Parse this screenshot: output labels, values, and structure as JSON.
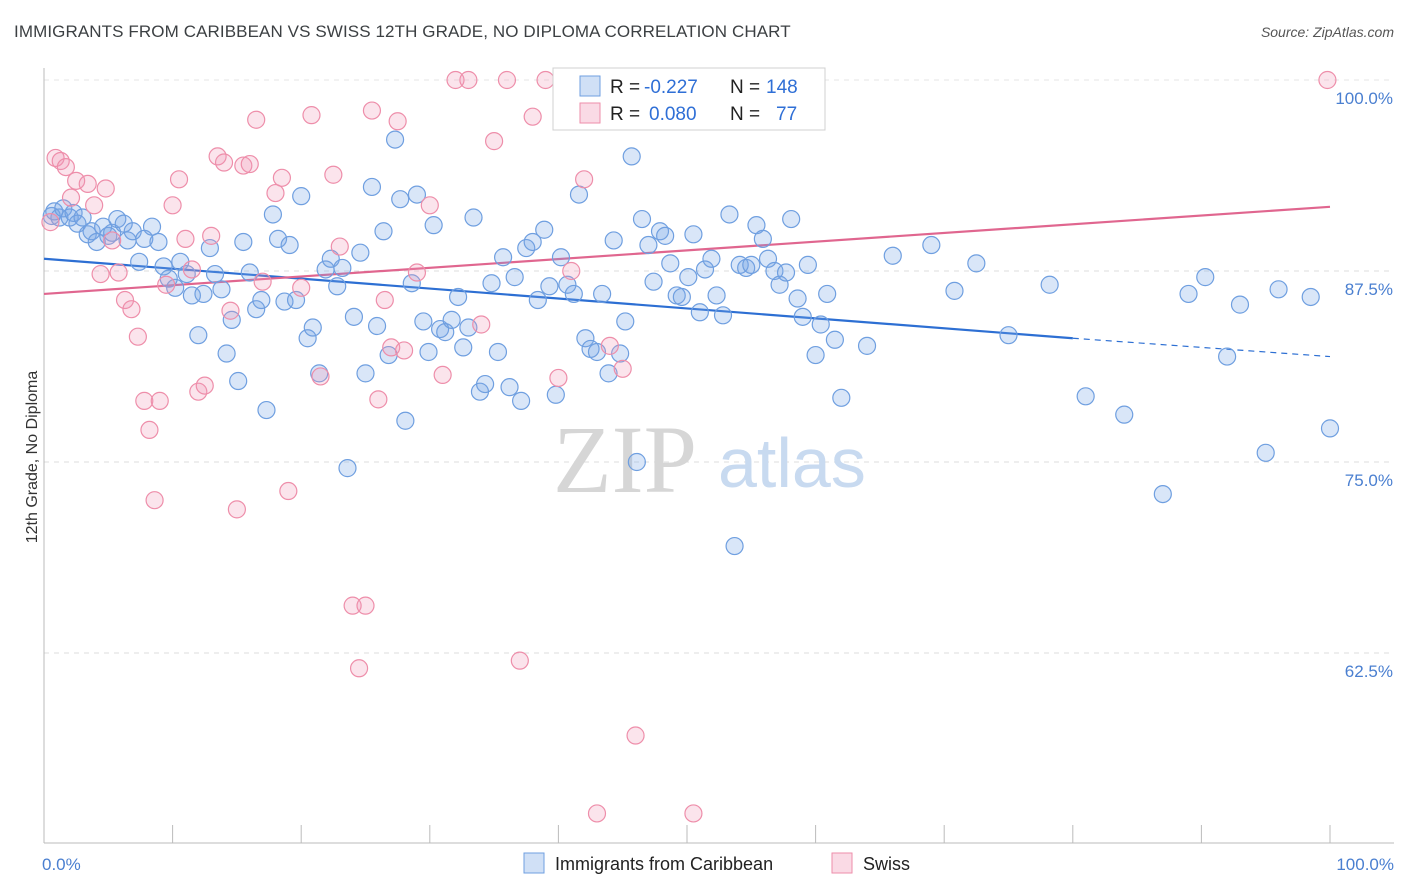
{
  "title": "IMMIGRANTS FROM CARIBBEAN VS SWISS 12TH GRADE, NO DIPLOMA CORRELATION CHART",
  "source": "Source: ZipAtlas.com",
  "watermark": {
    "zip": "ZIP",
    "atlas": "atlas"
  },
  "stats_box": {
    "r_label": "R =",
    "n_label": "N =",
    "rows": [
      {
        "series": "Immigrants from Caribbean",
        "r": "-0.227",
        "n": "148",
        "color": "#6f9fe0"
      },
      {
        "series": "Swiss",
        "r": "0.080",
        "n": "77",
        "color": "#ee8eaa"
      }
    ]
  },
  "chart_data": {
    "type": "scatter",
    "title": "IMMIGRANTS FROM CARIBBEAN VS SWISS 12TH GRADE, NO DIPLOMA CORRELATION CHART",
    "xlabel": "",
    "ylabel": "12th Grade, No Diploma",
    "xlim": [
      0,
      100
    ],
    "ylim": [
      51,
      100.7
    ],
    "x_tick_labels": [
      "0.0%",
      "100.0%"
    ],
    "y_ticks": [
      62.5,
      75.0,
      87.5,
      100.0
    ],
    "y_tick_labels": [
      "62.5%",
      "75.0%",
      "87.5%",
      "100.0%"
    ],
    "grid": true,
    "legend_position": "bottom-center",
    "series": [
      {
        "name": "Immigrants from Caribbean",
        "color": "#6f9fe0",
        "fill": "rgba(120,165,230,0.28)",
        "trend": {
          "x_start": 0,
          "y_start": 88.3,
          "x_solid_end": 80,
          "y_solid_end": 83.1,
          "x_end": 100,
          "y_end": 81.9,
          "color": "#2d6fd3"
        },
        "points": [
          [
            0.6,
            91.1
          ],
          [
            0.8,
            91.4
          ],
          [
            1.2,
            91.0
          ],
          [
            1.5,
            91.6
          ],
          [
            2.0,
            91.0
          ],
          [
            2.3,
            91.3
          ],
          [
            2.6,
            90.6
          ],
          [
            3.0,
            91.0
          ],
          [
            3.4,
            89.9
          ],
          [
            3.7,
            90.1
          ],
          [
            4.1,
            89.4
          ],
          [
            4.6,
            90.4
          ],
          [
            5.0,
            89.8
          ],
          [
            5.3,
            90.0
          ],
          [
            5.7,
            90.9
          ],
          [
            6.2,
            90.6
          ],
          [
            6.5,
            89.5
          ],
          [
            6.9,
            90.1
          ],
          [
            7.4,
            88.1
          ],
          [
            7.8,
            89.6
          ],
          [
            8.4,
            90.4
          ],
          [
            8.9,
            89.4
          ],
          [
            9.3,
            87.8
          ],
          [
            9.7,
            87.0
          ],
          [
            10.2,
            86.4
          ],
          [
            10.6,
            88.1
          ],
          [
            11.1,
            87.3
          ],
          [
            11.5,
            85.9
          ],
          [
            12.0,
            83.3
          ],
          [
            12.4,
            86.0
          ],
          [
            12.9,
            89.0
          ],
          [
            13.3,
            87.3
          ],
          [
            13.8,
            86.3
          ],
          [
            14.2,
            82.1
          ],
          [
            14.6,
            84.3
          ],
          [
            15.1,
            80.3
          ],
          [
            15.5,
            89.4
          ],
          [
            16.0,
            87.4
          ],
          [
            16.5,
            85.0
          ],
          [
            16.9,
            85.6
          ],
          [
            17.3,
            78.4
          ],
          [
            17.8,
            91.2
          ],
          [
            18.2,
            89.6
          ],
          [
            18.7,
            85.5
          ],
          [
            19.1,
            89.2
          ],
          [
            19.6,
            85.6
          ],
          [
            20.0,
            92.4
          ],
          [
            20.5,
            83.1
          ],
          [
            20.9,
            83.8
          ],
          [
            21.4,
            80.8
          ],
          [
            21.9,
            87.6
          ],
          [
            22.3,
            88.3
          ],
          [
            22.8,
            86.5
          ],
          [
            23.2,
            87.7
          ],
          [
            23.6,
            74.6
          ],
          [
            24.1,
            84.5
          ],
          [
            24.6,
            88.7
          ],
          [
            25.0,
            80.8
          ],
          [
            25.5,
            93.0
          ],
          [
            25.9,
            83.9
          ],
          [
            26.4,
            90.1
          ],
          [
            26.8,
            82.0
          ],
          [
            27.3,
            96.1
          ],
          [
            27.7,
            92.2
          ],
          [
            28.1,
            77.7
          ],
          [
            28.6,
            86.7
          ],
          [
            29.0,
            92.5
          ],
          [
            29.5,
            84.2
          ],
          [
            29.9,
            82.2
          ],
          [
            30.3,
            90.5
          ],
          [
            30.8,
            83.7
          ],
          [
            31.2,
            83.5
          ],
          [
            31.7,
            84.3
          ],
          [
            32.2,
            85.8
          ],
          [
            32.6,
            82.5
          ],
          [
            33.0,
            83.8
          ],
          [
            33.4,
            91.0
          ],
          [
            33.9,
            79.6
          ],
          [
            34.3,
            80.1
          ],
          [
            34.8,
            86.7
          ],
          [
            35.3,
            82.2
          ],
          [
            35.7,
            88.4
          ],
          [
            36.2,
            79.9
          ],
          [
            36.6,
            87.1
          ],
          [
            37.1,
            79.0
          ],
          [
            37.5,
            89.0
          ],
          [
            38.0,
            89.4
          ],
          [
            38.4,
            85.6
          ],
          [
            38.9,
            90.2
          ],
          [
            39.3,
            86.5
          ],
          [
            39.8,
            79.4
          ],
          [
            40.2,
            88.4
          ],
          [
            40.7,
            86.6
          ],
          [
            41.2,
            86.0
          ],
          [
            41.6,
            92.5
          ],
          [
            42.1,
            83.1
          ],
          [
            42.5,
            82.4
          ],
          [
            43.0,
            82.2
          ],
          [
            43.4,
            86.0
          ],
          [
            43.9,
            80.8
          ],
          [
            44.3,
            89.5
          ],
          [
            44.8,
            82.1
          ],
          [
            45.2,
            84.2
          ],
          [
            45.7,
            95.0
          ],
          [
            46.1,
            75.0
          ],
          [
            46.5,
            90.9
          ],
          [
            47.0,
            89.2
          ],
          [
            47.4,
            86.8
          ],
          [
            47.9,
            90.1
          ],
          [
            48.3,
            89.8
          ],
          [
            48.7,
            88.0
          ],
          [
            49.2,
            85.9
          ],
          [
            49.6,
            85.8
          ],
          [
            50.1,
            87.1
          ],
          [
            50.5,
            89.9
          ],
          [
            51.0,
            84.8
          ],
          [
            51.4,
            87.6
          ],
          [
            51.9,
            88.3
          ],
          [
            52.3,
            85.9
          ],
          [
            52.8,
            84.6
          ],
          [
            53.3,
            91.2
          ],
          [
            53.7,
            69.5
          ],
          [
            54.1,
            87.9
          ],
          [
            54.6,
            87.7
          ],
          [
            55.0,
            87.9
          ],
          [
            55.4,
            90.5
          ],
          [
            55.9,
            89.6
          ],
          [
            56.3,
            88.3
          ],
          [
            56.8,
            87.5
          ],
          [
            57.2,
            86.6
          ],
          [
            57.7,
            87.4
          ],
          [
            58.1,
            90.9
          ],
          [
            58.6,
            85.7
          ],
          [
            59.0,
            84.5
          ],
          [
            59.4,
            87.9
          ],
          [
            60.0,
            82.0
          ],
          [
            60.4,
            84.0
          ],
          [
            60.9,
            86.0
          ],
          [
            61.5,
            83.0
          ],
          [
            62.0,
            79.2
          ],
          [
            64.0,
            82.6
          ],
          [
            66.0,
            88.5
          ],
          [
            69.0,
            89.2
          ],
          [
            70.8,
            86.2
          ],
          [
            72.5,
            88.0
          ],
          [
            75.0,
            83.3
          ],
          [
            78.2,
            86.6
          ],
          [
            81.0,
            79.3
          ],
          [
            84.0,
            78.1
          ],
          [
            87.0,
            72.9
          ],
          [
            90.3,
            87.1
          ],
          [
            93.0,
            85.3
          ],
          [
            96.0,
            86.3
          ],
          [
            98.5,
            85.8
          ],
          [
            100.0,
            77.2
          ],
          [
            92.0,
            81.9
          ],
          [
            89.0,
            86.0
          ],
          [
            95.0,
            75.6
          ]
        ]
      },
      {
        "name": "Swiss",
        "color": "#ee8eaa",
        "fill": "rgba(240,150,180,0.26)",
        "trend": {
          "x_start": 0,
          "y_start": 86.0,
          "x_end": 100,
          "y_end": 91.7,
          "color": "#e0668f"
        },
        "points": [
          [
            0.5,
            90.7
          ],
          [
            0.9,
            94.9
          ],
          [
            1.3,
            94.7
          ],
          [
            1.7,
            94.3
          ],
          [
            2.1,
            92.3
          ],
          [
            2.5,
            93.4
          ],
          [
            3.4,
            93.2
          ],
          [
            3.9,
            91.8
          ],
          [
            4.4,
            87.3
          ],
          [
            4.8,
            92.9
          ],
          [
            5.3,
            89.5
          ],
          [
            5.8,
            87.4
          ],
          [
            6.3,
            85.6
          ],
          [
            6.8,
            85.0
          ],
          [
            7.3,
            83.2
          ],
          [
            7.8,
            79.0
          ],
          [
            8.2,
            77.1
          ],
          [
            8.6,
            72.5
          ],
          [
            9.0,
            79.0
          ],
          [
            9.5,
            86.6
          ],
          [
            10.0,
            91.8
          ],
          [
            10.5,
            93.5
          ],
          [
            11.0,
            89.6
          ],
          [
            11.5,
            87.6
          ],
          [
            12.0,
            79.6
          ],
          [
            12.5,
            80.0
          ],
          [
            13.0,
            89.8
          ],
          [
            13.5,
            95.0
          ],
          [
            14.0,
            94.6
          ],
          [
            14.5,
            84.9
          ],
          [
            15.0,
            71.9
          ],
          [
            15.5,
            94.4
          ],
          [
            16.0,
            94.5
          ],
          [
            16.5,
            97.4
          ],
          [
            17.0,
            86.8
          ],
          [
            18.0,
            92.6
          ],
          [
            18.5,
            93.6
          ],
          [
            19.0,
            73.1
          ],
          [
            20.0,
            86.4
          ],
          [
            20.8,
            97.7
          ],
          [
            21.5,
            80.6
          ],
          [
            22.5,
            93.8
          ],
          [
            23.0,
            89.1
          ],
          [
            24.0,
            65.6
          ],
          [
            24.5,
            61.5
          ],
          [
            25.0,
            65.6
          ],
          [
            25.5,
            98.0
          ],
          [
            26.0,
            79.1
          ],
          [
            26.5,
            85.6
          ],
          [
            27.0,
            82.5
          ],
          [
            27.5,
            97.3
          ],
          [
            28.0,
            82.3
          ],
          [
            29.0,
            87.4
          ],
          [
            30.0,
            91.8
          ],
          [
            31.0,
            80.7
          ],
          [
            32.0,
            100.0
          ],
          [
            33.0,
            100.0
          ],
          [
            34.0,
            84.0
          ],
          [
            35.0,
            96.0
          ],
          [
            36.0,
            100.0
          ],
          [
            37.0,
            62.0
          ],
          [
            38.0,
            97.6
          ],
          [
            39.0,
            100.0
          ],
          [
            40.0,
            80.5
          ],
          [
            41.0,
            87.5
          ],
          [
            42.0,
            93.5
          ],
          [
            43.0,
            52.0
          ],
          [
            44.0,
            82.6
          ],
          [
            45.0,
            81.1
          ],
          [
            46.0,
            57.1
          ],
          [
            47.0,
            100.0
          ],
          [
            48.0,
            100.0
          ],
          [
            49.0,
            100.0
          ],
          [
            50.0,
            100.0
          ],
          [
            50.5,
            52.0
          ],
          [
            52.0,
            100.0
          ],
          [
            99.8,
            100.0
          ]
        ]
      }
    ]
  }
}
